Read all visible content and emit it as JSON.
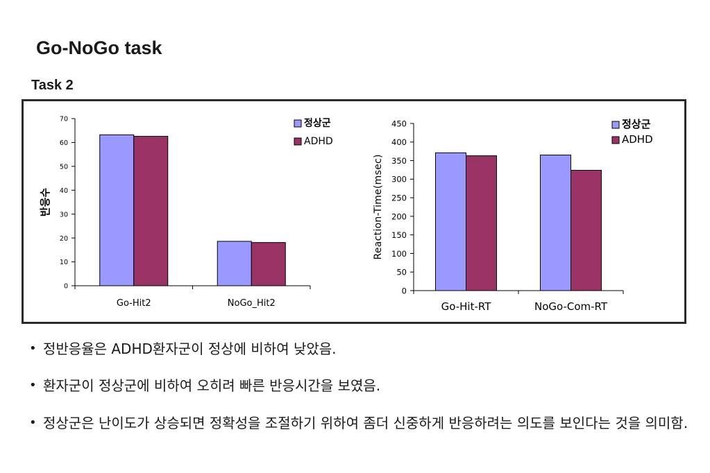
{
  "title": "Go-NoGo task",
  "subtitle": "Task 2",
  "bullets": [
    "정반응율은 ADHD환자군이 정상에 비하여 낮았음.",
    "환자군이 정상군에 비하여 오히려 빠른 반응시간을 보였음.",
    "정상군은 난이도가 상승되면 정확성을 조절하기 위하여 좀더 신중하게 반응하려는 의도를 보인다는 것을 의미함."
  ],
  "chart_data": [
    {
      "type": "bar",
      "categories": [
        "Go-Hit2",
        "NoGo_Hit2"
      ],
      "series": [
        {
          "name": "정상군",
          "values": [
            63.2,
            18.6
          ],
          "color": "#9999ff"
        },
        {
          "name": "ADHD",
          "values": [
            62.6,
            18.1
          ],
          "color": "#993366"
        }
      ],
      "xlabel": "",
      "ylabel": "반응수",
      "ylim": [
        0,
        70
      ],
      "yticks": [
        0,
        10,
        20,
        30,
        40,
        50,
        60,
        70
      ],
      "legend": "top-right",
      "grid": false
    },
    {
      "type": "bar",
      "categories": [
        "Go-Hit-RT",
        "NoGo-Com-RT"
      ],
      "series": [
        {
          "name": "정상군",
          "values": [
            371,
            365
          ],
          "color": "#9999ff"
        },
        {
          "name": "ADHD",
          "values": [
            363,
            324
          ],
          "color": "#993366"
        }
      ],
      "xlabel": "",
      "ylabel": "Reaction-Time(msec)",
      "ylim": [
        0,
        450
      ],
      "yticks": [
        0,
        50,
        100,
        150,
        200,
        250,
        300,
        350,
        400,
        450
      ],
      "legend": "top-right",
      "grid": false
    }
  ]
}
